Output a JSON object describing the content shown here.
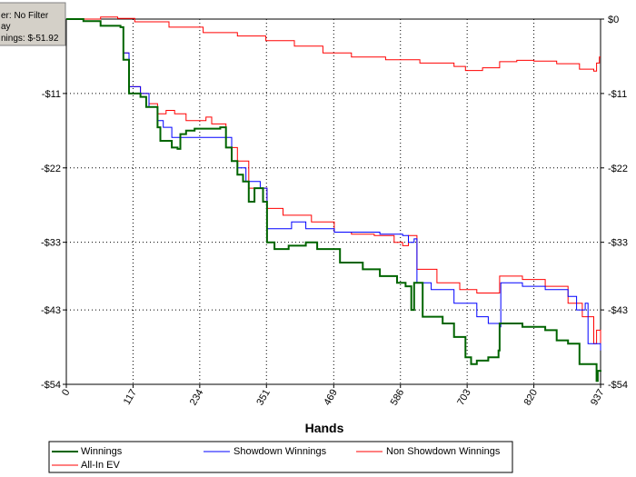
{
  "info_box": {
    "line1": "er: No Filter",
    "line2": "ay",
    "line3": "nings: $-51.92"
  },
  "colors": {
    "winnings": "#006400",
    "showdown": "#0000ff",
    "non_showdown": "#ff0000",
    "all_in_ev": "#ff0000",
    "grid": "#000000",
    "info_bg": "#d4d0c8"
  },
  "chart_data": {
    "type": "line",
    "xlabel": "Hands",
    "ylabel": "",
    "xlim": [
      0,
      937
    ],
    "ylim": [
      -54,
      0
    ],
    "x_ticks": [
      "0",
      "117",
      "234",
      "351",
      "469",
      "586",
      "703",
      "820",
      "937"
    ],
    "x_tick_values": [
      0,
      117,
      234,
      351,
      469,
      586,
      703,
      820,
      937
    ],
    "y_ticks_left": [
      "-$54",
      "-$43",
      "-$33",
      "-$22",
      "-$11",
      ""
    ],
    "y_ticks_right": [
      "-$54",
      "-$43",
      "-$33",
      "-$22",
      "-$11",
      "$0"
    ],
    "y_tick_values": [
      -54,
      -43,
      -33,
      -22,
      -11,
      0
    ],
    "grid": true,
    "legend_position": "bottom",
    "series": [
      {
        "name": "Winnings",
        "key": "winnings",
        "points": [
          [
            0,
            0
          ],
          [
            30,
            -0.3
          ],
          [
            60,
            -1
          ],
          [
            95,
            -1.2
          ],
          [
            100,
            -6
          ],
          [
            110,
            -11
          ],
          [
            130,
            -11.5
          ],
          [
            140,
            -13
          ],
          [
            150,
            -13
          ],
          [
            160,
            -16
          ],
          [
            165,
            -18
          ],
          [
            185,
            -19
          ],
          [
            195,
            -19.2
          ],
          [
            200,
            -17
          ],
          [
            210,
            -16.5
          ],
          [
            225,
            -16.2
          ],
          [
            270,
            -16
          ],
          [
            280,
            -19
          ],
          [
            290,
            -21
          ],
          [
            300,
            -23
          ],
          [
            310,
            -24
          ],
          [
            320,
            -27
          ],
          [
            330,
            -25
          ],
          [
            345,
            -27
          ],
          [
            352,
            -33
          ],
          [
            365,
            -34
          ],
          [
            390,
            -33.5
          ],
          [
            420,
            -33
          ],
          [
            440,
            -34
          ],
          [
            480,
            -36
          ],
          [
            520,
            -37
          ],
          [
            550,
            -38
          ],
          [
            580,
            -39
          ],
          [
            595,
            -39.5
          ],
          [
            605,
            -43
          ],
          [
            610,
            -39
          ],
          [
            625,
            -44
          ],
          [
            660,
            -45
          ],
          [
            680,
            -47
          ],
          [
            700,
            -50
          ],
          [
            710,
            -51
          ],
          [
            720,
            -50.5
          ],
          [
            740,
            -50
          ],
          [
            758,
            -49
          ],
          [
            760,
            -45
          ],
          [
            800,
            -45.5
          ],
          [
            840,
            -46
          ],
          [
            860,
            -47.5
          ],
          [
            880,
            -48
          ],
          [
            900,
            -51
          ],
          [
            930,
            -53.5
          ],
          [
            932,
            -52
          ],
          [
            937,
            -51.9
          ]
        ]
      },
      {
        "name": "Showdown Winnings",
        "key": "showdown",
        "points": [
          [
            0,
            0
          ],
          [
            30,
            -0.3
          ],
          [
            60,
            -1
          ],
          [
            95,
            -1.2
          ],
          [
            100,
            -5
          ],
          [
            110,
            -10
          ],
          [
            130,
            -11
          ],
          [
            145,
            -13
          ],
          [
            160,
            -15
          ],
          [
            170,
            -16
          ],
          [
            185,
            -17.5
          ],
          [
            200,
            -17.5
          ],
          [
            230,
            -17.5
          ],
          [
            280,
            -17.5
          ],
          [
            290,
            -21
          ],
          [
            300,
            -22
          ],
          [
            315,
            -24
          ],
          [
            340,
            -25
          ],
          [
            352,
            -31
          ],
          [
            375,
            -31
          ],
          [
            395,
            -30
          ],
          [
            420,
            -31
          ],
          [
            470,
            -31.5
          ],
          [
            510,
            -31.5
          ],
          [
            550,
            -31.8
          ],
          [
            590,
            -32
          ],
          [
            600,
            -33
          ],
          [
            610,
            -32.5
          ],
          [
            615,
            -39
          ],
          [
            640,
            -40
          ],
          [
            680,
            -42
          ],
          [
            720,
            -44
          ],
          [
            740,
            -45
          ],
          [
            760,
            -45.5
          ],
          [
            762,
            -39
          ],
          [
            800,
            -39.5
          ],
          [
            840,
            -40
          ],
          [
            880,
            -41
          ],
          [
            895,
            -43
          ],
          [
            910,
            -42
          ],
          [
            915,
            -48
          ],
          [
            937,
            -49
          ]
        ]
      },
      {
        "name": "Non Showdown Winnings",
        "key": "non_showdown",
        "points": [
          [
            0,
            0
          ],
          [
            30,
            0
          ],
          [
            60,
            0.3
          ],
          [
            90,
            0.1
          ],
          [
            120,
            -0.4
          ],
          [
            180,
            -1.2
          ],
          [
            240,
            -2
          ],
          [
            300,
            -2.5
          ],
          [
            350,
            -3.2
          ],
          [
            400,
            -4
          ],
          [
            450,
            -5
          ],
          [
            500,
            -5.6
          ],
          [
            560,
            -6
          ],
          [
            620,
            -6.5
          ],
          [
            680,
            -7
          ],
          [
            700,
            -7.6
          ],
          [
            730,
            -7.2
          ],
          [
            760,
            -6.3
          ],
          [
            790,
            -6.1
          ],
          [
            820,
            -6.2
          ],
          [
            860,
            -6.6
          ],
          [
            900,
            -7.4
          ],
          [
            925,
            -7.7
          ],
          [
            930,
            -6.5
          ],
          [
            935,
            -5.6
          ],
          [
            937,
            -5.6
          ]
        ]
      },
      {
        "name": "All-In EV",
        "key": "all_in_ev",
        "points": [
          [
            0,
            0
          ],
          [
            30,
            -0.3
          ],
          [
            60,
            -1
          ],
          [
            95,
            -1.2
          ],
          [
            100,
            -5
          ],
          [
            110,
            -10
          ],
          [
            130,
            -11
          ],
          [
            145,
            -12.5
          ],
          [
            160,
            -14
          ],
          [
            175,
            -13.5
          ],
          [
            190,
            -14
          ],
          [
            210,
            -15
          ],
          [
            235,
            -15
          ],
          [
            245,
            -14.5
          ],
          [
            255,
            -15.5
          ],
          [
            275,
            -15.5
          ],
          [
            280,
            -19
          ],
          [
            300,
            -21
          ],
          [
            320,
            -25
          ],
          [
            352,
            -28
          ],
          [
            380,
            -29
          ],
          [
            430,
            -30
          ],
          [
            470,
            -31.5
          ],
          [
            500,
            -31.8
          ],
          [
            540,
            -32
          ],
          [
            575,
            -33
          ],
          [
            590,
            -33.5
          ],
          [
            600,
            -32
          ],
          [
            615,
            -37
          ],
          [
            650,
            -39
          ],
          [
            690,
            -40
          ],
          [
            720,
            -40.5
          ],
          [
            760,
            -38
          ],
          [
            800,
            -38.5
          ],
          [
            840,
            -39.5
          ],
          [
            880,
            -42
          ],
          [
            905,
            -44
          ],
          [
            925,
            -48
          ],
          [
            930,
            -46
          ],
          [
            937,
            -48
          ]
        ]
      }
    ]
  },
  "legend": {
    "items": [
      {
        "label": "Winnings",
        "key": "winnings"
      },
      {
        "label": "Showdown Winnings",
        "key": "showdown"
      },
      {
        "label": "Non Showdown Winnings",
        "key": "non_showdown"
      },
      {
        "label": "All-In EV",
        "key": "all_in_ev"
      }
    ]
  }
}
